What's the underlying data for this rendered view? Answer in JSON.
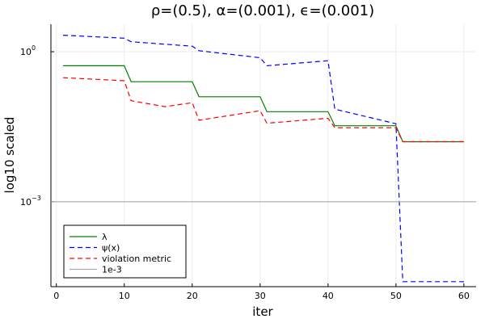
{
  "chart_data": {
    "type": "line",
    "title": "ρ=(0.5), α=(0.001), ϵ=(0.001)",
    "xlabel": "iter",
    "ylabel": "log10 scaled",
    "xlim": [
      -0.8,
      61.8
    ],
    "xticks": [
      0,
      10,
      20,
      30,
      40,
      50,
      60
    ],
    "xtick_labels": [
      "0",
      "10",
      "20",
      "30",
      "40",
      "50",
      "60"
    ],
    "y_scale": "log10",
    "ylim_log10": [
      -4.7,
      0.55
    ],
    "yticks_log10": [
      0,
      -3
    ],
    "ytick_labels": [
      {
        "base": "10",
        "exp": "0"
      },
      {
        "base": "10",
        "exp": "−3"
      }
    ],
    "grid": true,
    "legend_position": "bottom-left",
    "series": [
      {
        "name": "λ",
        "color": "#008000",
        "dash": "solid",
        "x": [
          1,
          10,
          11,
          20,
          21,
          30,
          31,
          40,
          41,
          50,
          51,
          60
        ],
        "y_log10": [
          -0.28,
          -0.28,
          -0.6,
          -0.6,
          -0.9,
          -0.9,
          -1.2,
          -1.2,
          -1.48,
          -1.48,
          -1.8,
          -1.8
        ]
      },
      {
        "name": "ψ(x)",
        "color": "#0000ff",
        "dash": "dashed",
        "x": [
          1,
          10,
          11,
          20,
          21,
          30,
          31,
          40,
          41,
          50,
          51,
          60
        ],
        "y_log10": [
          0.33,
          0.27,
          0.2,
          0.11,
          0.02,
          -0.12,
          -0.28,
          -0.18,
          -1.15,
          -1.44,
          -4.6,
          -4.6
        ]
      },
      {
        "name": "violation metric",
        "color": "#ff0000",
        "dash": "dashed",
        "x": [
          1,
          10,
          11,
          16,
          20,
          21,
          30,
          31,
          40,
          41,
          50,
          51,
          60
        ],
        "y_log10": [
          -0.52,
          -0.58,
          -0.98,
          -1.1,
          -1.02,
          -1.37,
          -1.18,
          -1.43,
          -1.33,
          -1.52,
          -1.52,
          -1.8,
          -1.8
        ]
      },
      {
        "name": "1e-3",
        "color": "#aaaaaa",
        "dash": "solid",
        "x": [
          -0.8,
          61.8
        ],
        "y_log10": [
          -3,
          -3
        ]
      }
    ]
  }
}
